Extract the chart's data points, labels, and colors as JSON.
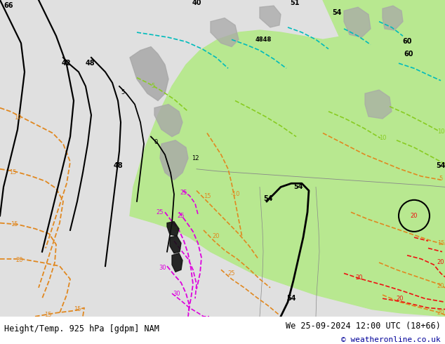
{
  "title_left": "Height/Temp. 925 hPa [gdpm] NAM",
  "title_right": "We 25-09-2024 12:00 UTC (18+66)",
  "copyright": "© weatheronline.co.uk",
  "bg_color": "#e0e0e0",
  "fig_width": 6.34,
  "fig_height": 4.9,
  "dpi": 100,
  "title_fontsize": 8.5,
  "copyright_color": "#000099",
  "copyright_fontsize": 8,
  "green_color": "#b8e890",
  "gray_color": "#a8a8a8",
  "orange_color": "#e08820",
  "magenta_color": "#dd00dd",
  "red_color": "#ee1111",
  "cyan_color": "#00bbbb",
  "lime_color": "#88cc22",
  "black_color": "#000000",
  "white_color": "#ffffff"
}
